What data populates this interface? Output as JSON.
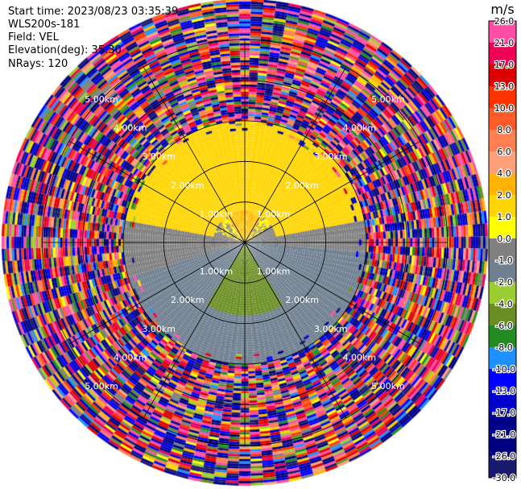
{
  "header": {
    "start_time": "Start time: 2023/08/23 03:35:39",
    "instrument": "WLS200s-181",
    "field": "Field: VEL",
    "elevation": "Elevation(deg): 35.30",
    "nrays": "NRays: 120"
  },
  "colorbar": {
    "unit": "m/s",
    "ticks": [
      "26.0",
      "21.0",
      "17.0",
      "13.0",
      "10.0",
      "8.0",
      "6.0",
      "4.0",
      "2.0",
      "1.0",
      "0.0",
      "-1.0",
      "-2.0",
      "-4.0",
      "-6.0",
      "-8.0",
      "-10.0",
      "-13.0",
      "-17.0",
      "-21.0",
      "-26.0",
      "-30.0"
    ],
    "colors": [
      "#ff4da6",
      "#ee0055",
      "#dd0000",
      "#ff3300",
      "#ff5a28",
      "#ff7f50",
      "#ffa07a",
      "#ffb300",
      "#ffd500",
      "#ffff00",
      "#808080",
      "#708090",
      "#9acd32",
      "#6b8e23",
      "#228b22",
      "#1e90ff",
      "#0000ff",
      "#0000cc",
      "#00008b",
      "#000080",
      "#191970"
    ]
  },
  "chart_data": {
    "type": "heatmap",
    "subtype": "polar-ppi",
    "field": "VEL",
    "units": "m/s",
    "nrays": 120,
    "elevation_deg": 35.3,
    "range_rings_km": [
      1.0,
      2.0,
      3.0,
      4.0,
      5.0
    ],
    "ring_labels": [
      "1.00km",
      "2.00km",
      "3.00km",
      "4.00km",
      "5.00km"
    ],
    "spokes_deg": [
      0,
      30,
      60,
      90,
      120,
      150,
      180,
      210,
      240,
      270,
      300,
      330
    ],
    "max_range_km": 6.0,
    "gate_km": 0.06,
    "valid_range_km": 3.0,
    "regions": [
      {
        "description": "north sector, near center",
        "az_range_deg": [
          -35,
          35
        ],
        "range_km": [
          0,
          0.8
        ],
        "velocity_mps": [
          1.0,
          4.0
        ]
      },
      {
        "description": "north sector",
        "az_range_deg": [
          -80,
          80
        ],
        "range_km": [
          0.8,
          3.0
        ],
        "velocity_mps": [
          1.0,
          2.0
        ]
      },
      {
        "description": "east-northeast sector",
        "az_range_deg": [
          60,
          95
        ],
        "range_km": [
          0,
          3.0
        ],
        "velocity_mps": [
          -1.0,
          0.0
        ]
      },
      {
        "description": "west sector",
        "az_range_deg": [
          255,
          290
        ],
        "range_km": [
          0,
          3.0
        ],
        "velocity_mps": [
          -1.0,
          0.0
        ]
      },
      {
        "description": "south sector, near center",
        "az_range_deg": [
          150,
          210
        ],
        "range_km": [
          0,
          1.8
        ],
        "velocity_mps": [
          -6.0,
          -4.0
        ]
      },
      {
        "description": "south sector",
        "az_range_deg": [
          95,
          255
        ],
        "range_km": [
          0,
          3.0
        ],
        "velocity_mps": [
          -2.0,
          -1.0
        ]
      },
      {
        "description": "outer ring noise",
        "range_km": [
          3.0,
          6.0
        ],
        "velocity_mps": [
          -30.0,
          26.0
        ]
      }
    ]
  }
}
